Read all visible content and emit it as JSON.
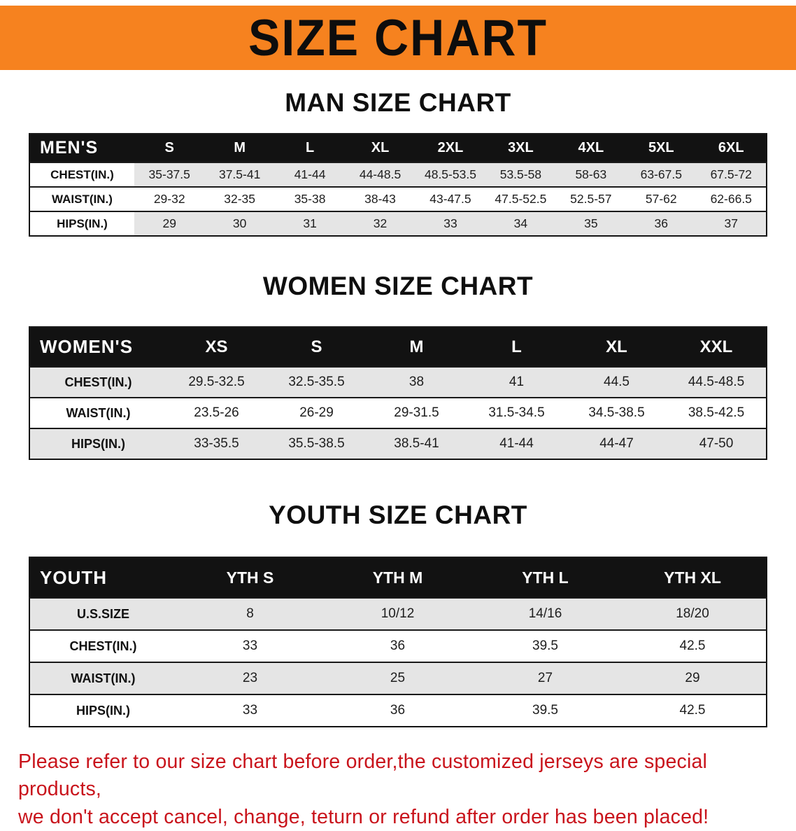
{
  "banner": {
    "title": "SIZE CHART",
    "bg_color": "#f6821f",
    "text_color": "#0d0d0d"
  },
  "sections": [
    {
      "heading": "MAN SIZE CHART",
      "table": {
        "header": [
          "MEN'S",
          "S",
          "M",
          "L",
          "XL",
          "2XL",
          "3XL",
          "4XL",
          "5XL",
          "6XL"
        ],
        "rows": [
          {
            "label": "CHEST(IN.)",
            "values": [
              "35-37.5",
              "37.5-41",
              "41-44",
              "44-48.5",
              "48.5-53.5",
              "53.5-58",
              "58-63",
              "63-67.5",
              "67.5-72"
            ]
          },
          {
            "label": "WAIST(IN.)",
            "values": [
              "29-32",
              "32-35",
              "35-38",
              "38-43",
              "43-47.5",
              "47.5-52.5",
              "52.5-57",
              "57-62",
              "62-66.5"
            ]
          },
          {
            "label": "HIPS(IN.)",
            "values": [
              "29",
              "30",
              "31",
              "32",
              "33",
              "34",
              "35",
              "36",
              "37"
            ]
          }
        ]
      }
    },
    {
      "heading": "WOMEN SIZE CHART",
      "table": {
        "header": [
          "WOMEN'S",
          "XS",
          "S",
          "M",
          "L",
          "XL",
          "XXL"
        ],
        "rows": [
          {
            "label": "CHEST(IN.)",
            "values": [
              "29.5-32.5",
              "32.5-35.5",
              "38",
              "41",
              "44.5",
              "44.5-48.5"
            ]
          },
          {
            "label": "WAIST(IN.)",
            "values": [
              "23.5-26",
              "26-29",
              "29-31.5",
              "31.5-34.5",
              "34.5-38.5",
              "38.5-42.5"
            ]
          },
          {
            "label": "HIPS(IN.)",
            "values": [
              "33-35.5",
              "35.5-38.5",
              "38.5-41",
              "41-44",
              "44-47",
              "47-50"
            ]
          }
        ]
      }
    },
    {
      "heading": "YOUTH SIZE CHART",
      "table": {
        "header": [
          "YOUTH",
          "YTH S",
          "YTH M",
          "YTH L",
          "YTH XL"
        ],
        "rows": [
          {
            "label": "U.S.SIZE",
            "values": [
              "8",
              "10/12",
              "14/16",
              "18/20"
            ]
          },
          {
            "label": "CHEST(IN.)",
            "values": [
              "33",
              "36",
              "39.5",
              "42.5"
            ]
          },
          {
            "label": "WAIST(IN.)",
            "values": [
              "23",
              "25",
              "27",
              "29"
            ]
          },
          {
            "label": "HIPS(IN.)",
            "values": [
              "33",
              "36",
              "39.5",
              "42.5"
            ]
          }
        ]
      }
    }
  ],
  "disclaimer": {
    "color": "#c9141c",
    "lines": [
      "Please refer to our size chart before order,the customized jerseys are special products,",
      "we don't accept cancel, change, teturn or refund after order has been placed!"
    ]
  }
}
